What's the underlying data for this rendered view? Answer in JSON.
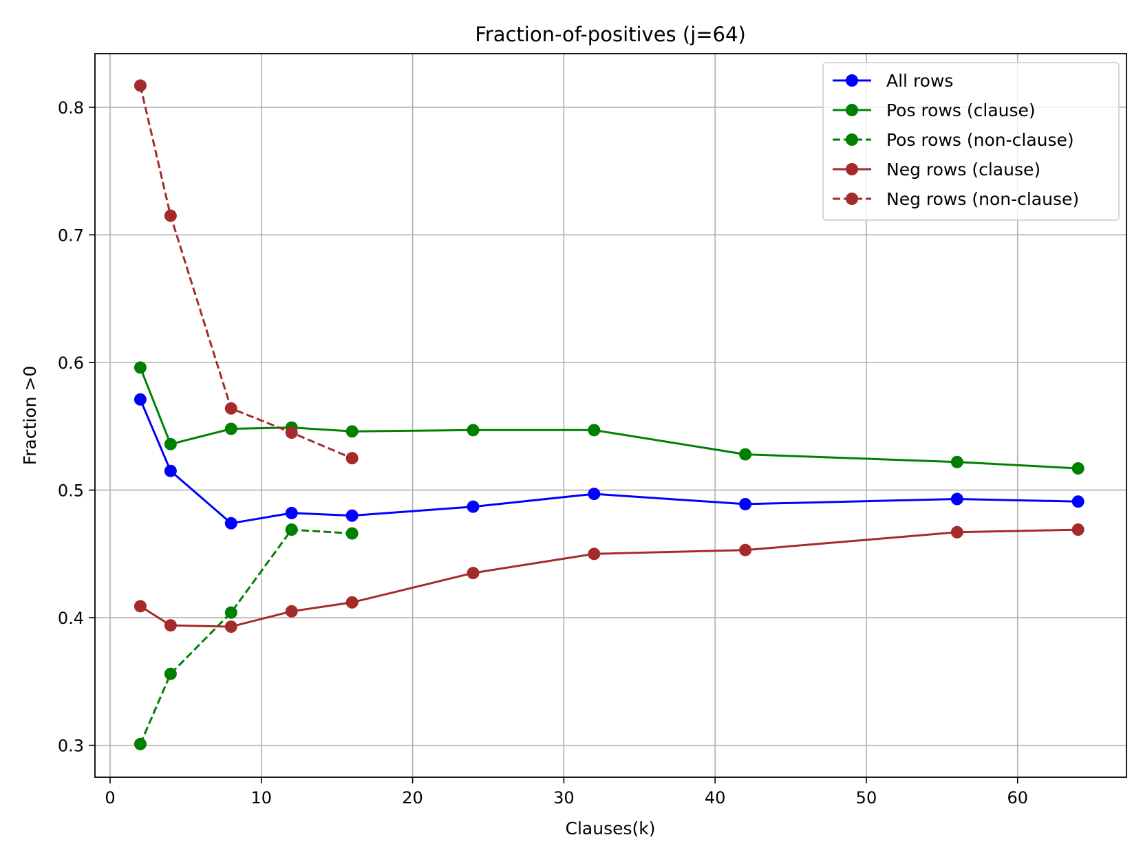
{
  "chart_data": {
    "type": "line",
    "title": "Fraction-of-positives (j=64)",
    "xlabel": "Clauses(k)",
    "ylabel": "Fraction >0",
    "xlim": [
      -1.0,
      67.2
    ],
    "ylim": [
      0.275,
      0.842
    ],
    "xticks": [
      0,
      10,
      20,
      30,
      40,
      50,
      60
    ],
    "yticks": [
      0.3,
      0.4,
      0.5,
      0.6,
      0.7,
      0.8
    ],
    "xtick_labels": [
      "0",
      "10",
      "20",
      "30",
      "40",
      "50",
      "60"
    ],
    "ytick_labels": [
      "0.3",
      "0.4",
      "0.5",
      "0.6",
      "0.7",
      "0.8"
    ],
    "grid": true,
    "legend_position": "top-right",
    "series": [
      {
        "name": "All rows",
        "color": "#0000ff",
        "linestyle": "solid",
        "x": [
          2,
          4,
          8,
          12,
          16,
          24,
          32,
          42,
          56,
          64
        ],
        "y": [
          0.571,
          0.515,
          0.474,
          0.482,
          0.48,
          0.487,
          0.497,
          0.489,
          0.493,
          0.491
        ]
      },
      {
        "name": "Pos rows (clause)",
        "color": "#008000",
        "linestyle": "solid",
        "x": [
          2,
          4,
          8,
          12,
          16,
          24,
          32,
          42,
          56,
          64
        ],
        "y": [
          0.596,
          0.536,
          0.548,
          0.549,
          0.546,
          0.547,
          0.547,
          0.528,
          0.522,
          0.517
        ]
      },
      {
        "name": "Pos rows (non-clause)",
        "color": "#008000",
        "linestyle": "dashed",
        "x": [
          2,
          4,
          8,
          12,
          16
        ],
        "y": [
          0.301,
          0.356,
          0.404,
          0.469,
          0.466
        ]
      },
      {
        "name": "Neg rows (clause)",
        "color": "#a52a2a",
        "linestyle": "solid",
        "x": [
          2,
          4,
          8,
          12,
          16,
          24,
          32,
          42,
          56,
          64
        ],
        "y": [
          0.409,
          0.394,
          0.393,
          0.405,
          0.412,
          0.435,
          0.45,
          0.453,
          0.467,
          0.469
        ]
      },
      {
        "name": "Neg rows (non-clause)",
        "color": "#a52a2a",
        "linestyle": "dashed",
        "x": [
          2,
          4,
          8,
          12,
          16
        ],
        "y": [
          0.817,
          0.715,
          0.564,
          0.545,
          0.525
        ]
      }
    ]
  }
}
